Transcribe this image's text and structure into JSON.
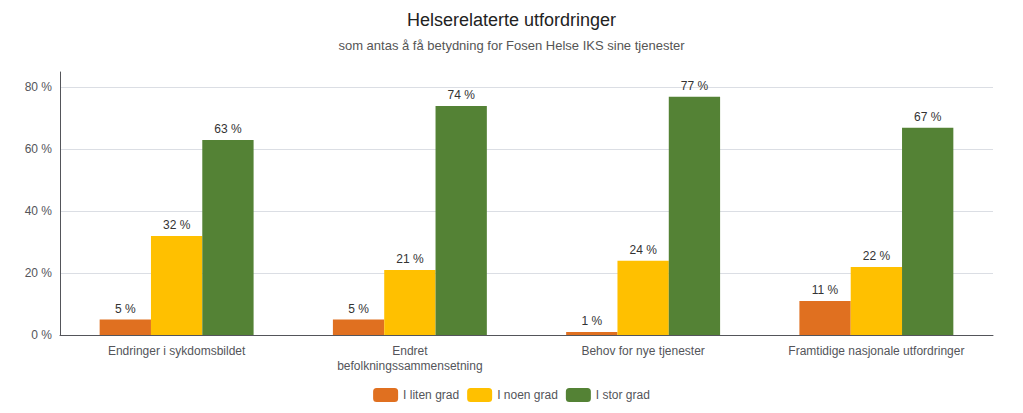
{
  "chart_data": {
    "type": "bar",
    "title": "Helserelaterte utfordringer",
    "subtitle": "som antas å få betydning for Fosen Helse IKS sine tjenester",
    "categories": [
      "Endringer i sykdomsbildet",
      "Endret\nbefolkningssammensetning",
      "Behov for nye tjenester",
      "Framtidige nasjonale utfordringer"
    ],
    "series": [
      {
        "name": "I liten grad",
        "color": "#E07020",
        "values": [
          5,
          5,
          1,
          11
        ],
        "value_labels": [
          "5 %",
          "5 %",
          "1 %",
          "11 %"
        ]
      },
      {
        "name": "I noen grad",
        "color": "#FFC000",
        "values": [
          32,
          21,
          24,
          22
        ],
        "value_labels": [
          "32 %",
          "21 %",
          "24 %",
          "22 %"
        ]
      },
      {
        "name": "I stor grad",
        "color": "#548235",
        "values": [
          63,
          74,
          77,
          67
        ],
        "value_labels": [
          "63 %",
          "74 %",
          "77 %",
          "67 %"
        ]
      }
    ],
    "ylim": [
      0,
      85
    ],
    "yticks": [
      {
        "value": 0,
        "label": "0 %"
      },
      {
        "value": 20,
        "label": "20 %"
      },
      {
        "value": 40,
        "label": "40 %"
      },
      {
        "value": 60,
        "label": "60 %"
      },
      {
        "value": 80,
        "label": "80 %"
      }
    ],
    "grid": true,
    "legend": "bottom",
    "data_labels": true
  }
}
